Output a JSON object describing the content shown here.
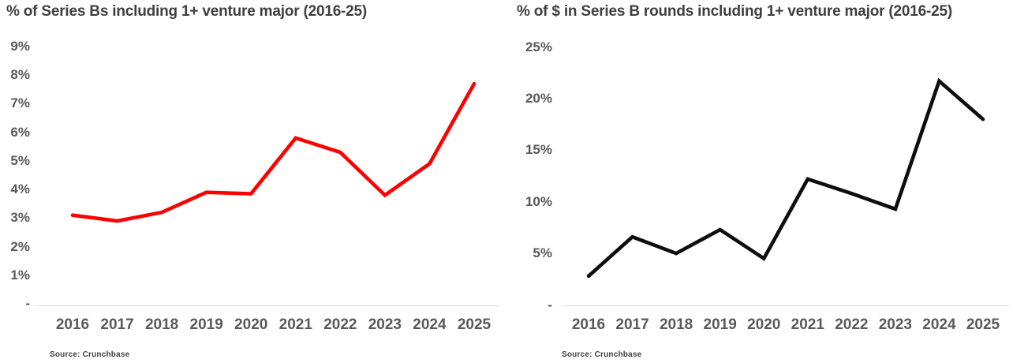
{
  "page_background": "#ffffff",
  "text_colors": {
    "title": "#3f3f3f",
    "axis_labels": "#595959",
    "source": "#404040",
    "axis_line": "#d9d9d9"
  },
  "chart_data": [
    {
      "type": "line",
      "title": "% of Series Bs including 1+ venture major (2016-25)",
      "source": "Source: Crunchbase",
      "line_color": "#fe0000",
      "unit": "%",
      "grid": false,
      "legend": "none",
      "categories": [
        "2016",
        "2017",
        "2018",
        "2019",
        "2020",
        "2021",
        "2022",
        "2023",
        "2024",
        "2025"
      ],
      "values": [
        3.1,
        2.9,
        3.2,
        3.9,
        3.85,
        5.8,
        5.3,
        3.8,
        4.9,
        7.7
      ],
      "ylim": [
        0,
        9
      ],
      "y_ticks": [
        {
          "label": "9%",
          "value": 9
        },
        {
          "label": "8%",
          "value": 8
        },
        {
          "label": "7%",
          "value": 7
        },
        {
          "label": "6%",
          "value": 6
        },
        {
          "label": "5%",
          "value": 5
        },
        {
          "label": "4%",
          "value": 4
        },
        {
          "label": "3%",
          "value": 3
        },
        {
          "label": "2%",
          "value": 2
        },
        {
          "label": "1%",
          "value": 1
        },
        {
          "label": "-",
          "value": 0
        }
      ]
    },
    {
      "type": "line",
      "title": "% of $ in Series B rounds including 1+ venture major (2016-25)",
      "source": "Source: Crunchbase",
      "line_color": "#0d0d0d",
      "unit": "%",
      "grid": false,
      "legend": "none",
      "categories": [
        "2016",
        "2017",
        "2018",
        "2019",
        "2020",
        "2021",
        "2022",
        "2023",
        "2024",
        "2025"
      ],
      "values": [
        2.8,
        6.6,
        5.0,
        7.3,
        4.5,
        12.2,
        10.8,
        9.3,
        21.7,
        18.0
      ],
      "ylim": [
        0,
        25
      ],
      "y_ticks": [
        {
          "label": "25%",
          "value": 25
        },
        {
          "label": "20%",
          "value": 20
        },
        {
          "label": "15%",
          "value": 15
        },
        {
          "label": "10%",
          "value": 10
        },
        {
          "label": "5%",
          "value": 5
        },
        {
          "label": "-",
          "value": 0
        }
      ]
    }
  ]
}
